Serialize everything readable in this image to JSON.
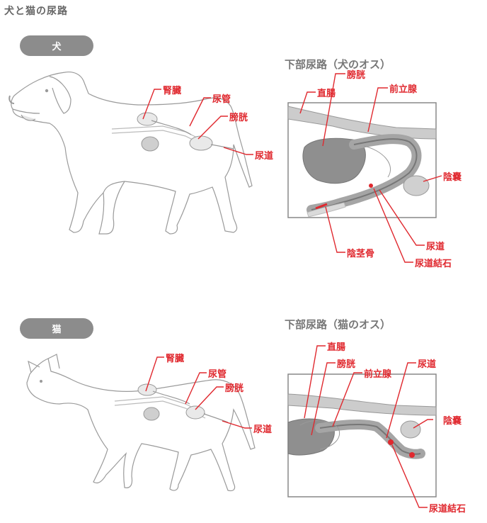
{
  "title": "犬と猫の尿路",
  "dog": {
    "tag": "犬",
    "detail_title": "下部尿路（犬のオス）",
    "labels": {
      "kidney": "腎臓",
      "ureter": "尿管",
      "bladder": "膀胱",
      "urethra": "尿道"
    },
    "detail_labels": {
      "rectum": "直腸",
      "bladder": "膀胱",
      "prostate": "前立腺",
      "scrotum": "陰嚢",
      "urethra": "尿道",
      "os_penis": "陰茎骨",
      "stone": "尿道結石"
    }
  },
  "cat": {
    "tag": "猫",
    "detail_title": "下部尿路（猫のオス）",
    "labels": {
      "kidney": "腎臓",
      "ureter": "尿管",
      "bladder": "膀胱",
      "urethra": "尿道"
    },
    "detail_labels": {
      "rectum": "直腸",
      "bladder": "膀胱",
      "prostate": "前立腺",
      "urethra": "尿道",
      "scrotum": "陰嚢",
      "stone": "尿道結石"
    }
  },
  "colors": {
    "accent": "#e0292f",
    "pill": "#8c8c8c",
    "outline": "#9a9a9a",
    "organ": "#cfcfcf"
  }
}
